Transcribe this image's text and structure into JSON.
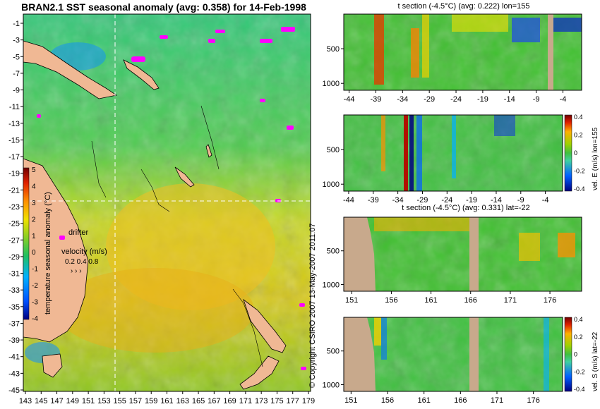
{
  "chart_data": [
    {
      "type": "heatmap",
      "title": "BRAN2.1 SST seasonal anomaly (avg: 0.358) for 14-Feb-1998",
      "x_ticks": [
        "143",
        "145",
        "147",
        "149",
        "151",
        "153",
        "155",
        "157",
        "159",
        "161",
        "163",
        "165",
        "167",
        "169",
        "171",
        "173",
        "175",
        "177",
        "179"
      ],
      "y_ticks": [
        "-1",
        "-3",
        "-5",
        "-7",
        "-9",
        "-11",
        "-13",
        "-15",
        "-17",
        "-19",
        "-21",
        "-23",
        "-25",
        "-27",
        "-29",
        "-31",
        "-33",
        "-35",
        "-37",
        "-39",
        "-41",
        "-43",
        "-45"
      ],
      "colorbar": {
        "label": "temperature seasonal anomaly (°C)",
        "ticks": [
          "5",
          "4",
          "3",
          "2",
          "1",
          "0",
          "-1",
          "-2",
          "-3",
          "-4"
        ],
        "range": [
          -4,
          5
        ]
      },
      "annotations": {
        "drifter": "drifter",
        "velocity_label": "velocity (m/s)",
        "velocity_values": "0.2 0.4 0.8"
      },
      "crosshair": {
        "lon": 155,
        "lat": -22
      },
      "colors": {
        "land": "#f0b894",
        "drifter": "#ff00ff",
        "crosshair": "#ffffff"
      }
    },
    {
      "type": "heatmap",
      "title": "t section (-4.5°C) (avg: 0.222) lon=155",
      "x_ticks": [
        "-44",
        "-39",
        "-34",
        "-29",
        "-24",
        "-19",
        "-14",
        "-9",
        "-4"
      ],
      "x_range": [
        -45,
        -0.5
      ],
      "y_ticks": [
        "500",
        "1000"
      ],
      "y_range": [
        0,
        1100
      ]
    },
    {
      "type": "heatmap",
      "title": "",
      "x_ticks": [
        "-44",
        "-39",
        "-34",
        "-29",
        "-24",
        "-19",
        "-14",
        "-9",
        "-4"
      ],
      "x_range": [
        -45,
        -0.5
      ],
      "y_ticks": [
        "500",
        "1000"
      ],
      "y_range": [
        0,
        1100
      ],
      "colorbar": {
        "label": "vel. E (m/s) lon=155",
        "ticks": [
          "0.4",
          "0.2",
          "0",
          "-0.2",
          "-0.4"
        ],
        "range": [
          -0.4,
          0.4
        ]
      }
    },
    {
      "type": "heatmap",
      "title": "t section (-4.5°C) (avg: 0.331) lat=-22",
      "x_ticks": [
        "151",
        "156",
        "161",
        "166",
        "171",
        "176"
      ],
      "x_range": [
        150,
        180
      ],
      "y_ticks": [
        "500",
        "1000"
      ],
      "y_range": [
        0,
        1100
      ]
    },
    {
      "type": "heatmap",
      "title": "",
      "x_ticks": [
        "151",
        "156",
        "161",
        "166",
        "171",
        "176"
      ],
      "x_range": [
        150,
        180
      ],
      "y_ticks": [
        "500",
        "1000"
      ],
      "y_range": [
        0,
        1100
      ],
      "colorbar": {
        "label": "vel. S (m/s) lat=-22",
        "ticks": [
          "0.4",
          "0.2",
          "0",
          "-0.2",
          "-0.4"
        ],
        "range": [
          -0.4,
          0.4
        ]
      }
    }
  ],
  "copyright": "© Copyright CSIRO 2007  13-May-2007 2011:07",
  "colors": {
    "bathymetry": "#c8a98c",
    "axis": "#000000"
  }
}
